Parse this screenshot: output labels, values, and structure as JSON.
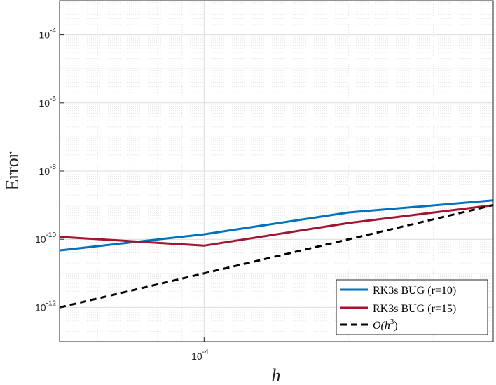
{
  "chart_data": {
    "type": "line",
    "xlabel": "h",
    "ylabel": "Error",
    "x_scale": "log",
    "y_scale": "log",
    "xlim": [
      5e-05,
      0.0004
    ],
    "ylim": [
      1e-13,
      0.001
    ],
    "grid": true,
    "minor_grid": true,
    "legend_position": "bottom-right",
    "x_ticks": [
      {
        "value": 0.0001,
        "base": "10",
        "exp": "-4"
      }
    ],
    "y_ticks": [
      {
        "value": 1e-12,
        "base": "10",
        "exp": "-12"
      },
      {
        "value": 1e-10,
        "base": "10",
        "exp": "-10"
      },
      {
        "value": 1e-08,
        "base": "10",
        "exp": "-8"
      },
      {
        "value": 1e-06,
        "base": "10",
        "exp": "-6"
      },
      {
        "value": 0.0001,
        "base": "10",
        "exp": "-4"
      }
    ],
    "series": [
      {
        "name": "RK3s BUG (r=10)",
        "color": "#0072BD",
        "dash": "solid",
        "x": [
          5e-05,
          0.0001,
          0.0002,
          0.0004
        ],
        "y": [
          4.7e-11,
          1.4e-10,
          6.1e-10,
          1.38e-09
        ]
      },
      {
        "name": "RK3s BUG (r=15)",
        "color": "#A2142F",
        "dash": "solid",
        "x": [
          5e-05,
          0.0001,
          0.0002,
          0.0004
        ],
        "y": [
          1.18e-10,
          6.5e-11,
          3e-10,
          1e-09
        ]
      },
      {
        "name": "O(h^3)",
        "legend_main": "O(h",
        "legend_sup": "3",
        "legend_close": ")",
        "color": "#000000",
        "dash": "dashed",
        "x": [
          5e-05,
          0.0004
        ],
        "y": [
          1e-12,
          1e-09
        ]
      }
    ]
  }
}
